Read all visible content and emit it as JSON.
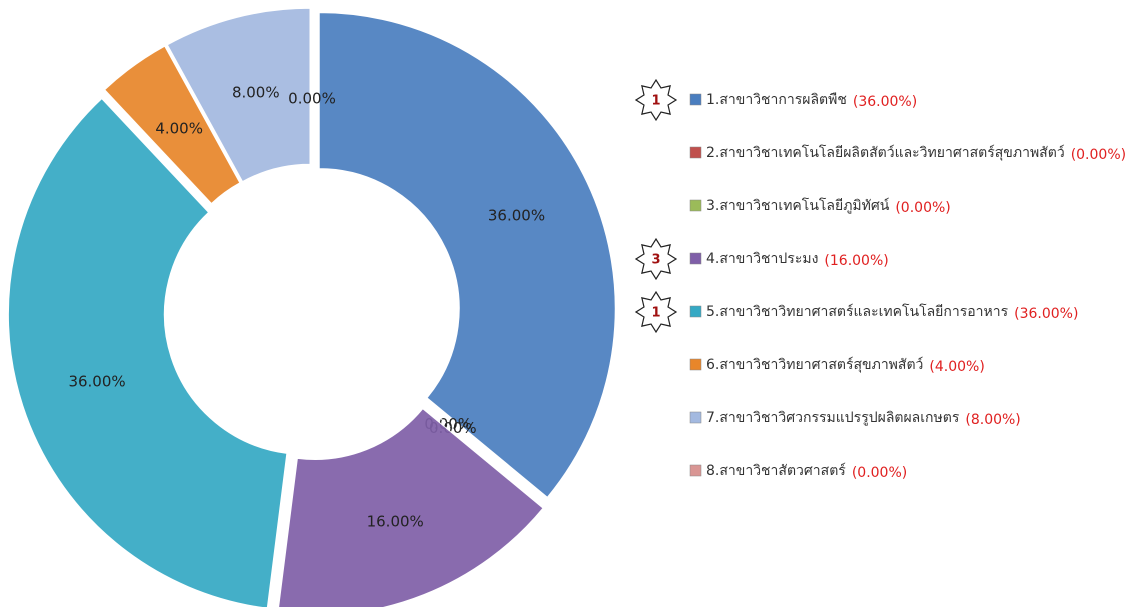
{
  "chart_data": {
    "type": "donut",
    "categories": [
      "1.สาขาวิชาการผลิตพืช",
      "2.สาขาวิชาเทคโนโลยีผลิตสัตว์และวิทยาศาสตร์สุขภาพสัตว์",
      "3.สาขาวิชาเทคโนโลยีภูมิทัศน์",
      "4.สาขาวิชาประมง",
      "5.สาขาวิชาวิทยาศาสตร์และเทคโนโลยีการอาหาร",
      "6.สาขาวิชาวิทยาศาสตร์สุขภาพสัตว์",
      "7.สาขาวิชาวิศวกรรมแปรรูปผลิตผลเกษตร",
      "8.สาขาวิชาสัตวศาสตร์"
    ],
    "values": [
      36,
      0,
      0,
      16,
      36,
      4,
      8,
      0
    ],
    "value_labels": [
      "36.00%",
      "0.00%",
      "0.00%",
      "16.00%",
      "36.00%",
      "4.00%",
      "8.00%",
      "0.00%"
    ],
    "legend_value_labels": [
      "(36.00%)",
      "(0.00%)",
      "(0.00%)",
      "(16.00%)",
      "(36.00%)",
      "(4.00%)",
      "(8.00%)",
      "(0.00%)"
    ],
    "ranks": [
      "1",
      null,
      null,
      "3",
      "1",
      null,
      null,
      null
    ],
    "colors": [
      "#4a7ebf",
      "#c0504d",
      "#9bbb59",
      "#7f5fa8",
      "#35a9c4",
      "#e8862a",
      "#a3b9e0",
      "#d99694"
    ]
  }
}
